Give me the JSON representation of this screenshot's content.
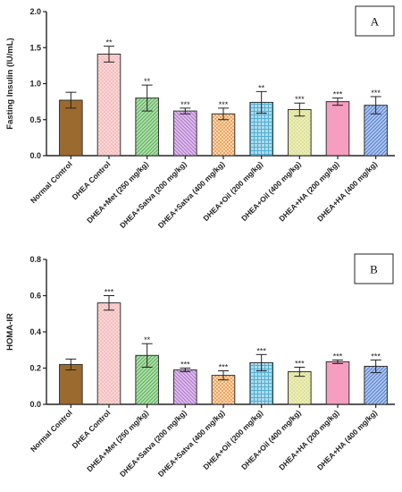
{
  "chart_data": [
    {
      "type": "bar",
      "panel_label": "A",
      "ylabel": "Fasting Insulin (IU/mL)",
      "ylim": [
        0,
        2.0
      ],
      "yticks": [
        "0.0",
        "0.5",
        "1.0",
        "1.5",
        "2.0"
      ],
      "categories": [
        "Normal Control",
        "DHEA Control",
        "DHEA+Met (250 mg/kg)",
        "DHEA+Satva (200 mg/kg)",
        "DHEA+Satva (400 mg/kg)",
        "DHEA+Oil (200 mg/kg)",
        "DHEA+Oil (400 mg/kg)",
        "DHEA+HA (200 mg/kg)",
        "DHEA+HA (400 mg/kg)"
      ],
      "values": [
        0.77,
        1.41,
        0.8,
        0.62,
        0.58,
        0.74,
        0.64,
        0.75,
        0.7
      ],
      "errors": [
        0.11,
        0.11,
        0.18,
        0.04,
        0.08,
        0.15,
        0.09,
        0.05,
        0.12
      ],
      "significance": [
        "",
        "**",
        "**",
        "***",
        "***",
        "**",
        "***",
        "***",
        "***"
      ]
    },
    {
      "type": "bar",
      "panel_label": "B",
      "ylabel": "HOMA-IR",
      "ylim": [
        0,
        0.8
      ],
      "yticks": [
        "0.0",
        "0.2",
        "0.4",
        "0.6",
        "0.8"
      ],
      "categories": [
        "Normal Control",
        "DHEA Control",
        "DHEA+Met (250 mg/kg)",
        "DHEA+Satva (200 mg/kg)",
        "DHEA+Satva (400 mg/kg)",
        "DHEA+Oil (200 mg/kg)",
        "DHEA+Oil (400 mg/kg)",
        "DHEA+HA (200 mg/kg)",
        "DHEA+HA (400 mg/kg)"
      ],
      "values": [
        0.22,
        0.56,
        0.27,
        0.19,
        0.16,
        0.23,
        0.18,
        0.235,
        0.21
      ],
      "errors": [
        0.03,
        0.04,
        0.065,
        0.01,
        0.025,
        0.045,
        0.025,
        0.01,
        0.035
      ],
      "significance": [
        "",
        "***",
        "**",
        "***",
        "***",
        "***",
        "***",
        "***",
        "***"
      ]
    }
  ],
  "colors": {
    "bar_fills": [
      "#9b6a2f",
      "#f2a3a3",
      "#5fb85a",
      "#b57bd1",
      "#f2a55c",
      "#4fb0d6",
      "#d2d66a",
      "#f27aa8",
      "#5a86d6"
    ],
    "axis": "#222222"
  },
  "bar_patterns": [
    "solid",
    "dots",
    "diagonal-forward",
    "diagonal-back",
    "checker",
    "grid",
    "dots",
    "horizontal",
    "diagonal-forward"
  ]
}
